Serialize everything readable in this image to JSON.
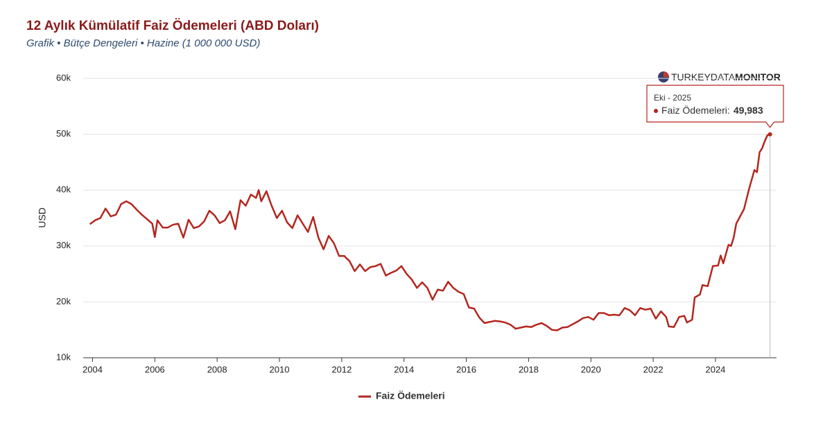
{
  "chart_data": {
    "type": "line",
    "title": "12 Aylık Kümülatif Faiz Ödemeleri (ABD Doları)",
    "subtitle": "Grafik • Bütçe Dengeleri • Hazine (1 000 000 USD)",
    "logo": {
      "light": "TURKEYDATA",
      "bold": "MONITOR"
    },
    "y_label": "USD",
    "xlim": [
      2003.7,
      2025.96
    ],
    "xticks": [
      2004,
      2006,
      2008,
      2010,
      2012,
      2014,
      2016,
      2018,
      2020,
      2022,
      2024
    ],
    "ylim": [
      10000,
      60000
    ],
    "yticks": [
      {
        "value": 10000,
        "label": "10k"
      },
      {
        "value": 20000,
        "label": "20k"
      },
      {
        "value": 30000,
        "label": "30k"
      },
      {
        "value": 40000,
        "label": "40k"
      },
      {
        "value": 50000,
        "label": "50k"
      },
      {
        "value": 60000,
        "label": "60k"
      }
    ],
    "grid": true,
    "legend": "bottom",
    "tooltip": {
      "x_label": "Eki - 2025",
      "label": "Faiz Ödemeleri:",
      "value_label": "49,983"
    },
    "x": [
      "2003-12",
      "2004-02",
      "2004-04",
      "2004-06",
      "2004-08",
      "2004-10",
      "2004-12",
      "2005-02",
      "2005-04",
      "2005-06",
      "2005-08",
      "2005-10",
      "2005-12",
      "2006-01",
      "2006-02",
      "2006-04",
      "2006-06",
      "2006-08",
      "2006-10",
      "2006-12",
      "2007-02",
      "2007-04",
      "2007-06",
      "2007-08",
      "2007-10",
      "2007-12",
      "2008-02",
      "2008-04",
      "2008-06",
      "2008-08",
      "2008-10",
      "2008-12",
      "2009-02",
      "2009-04",
      "2009-05",
      "2009-06",
      "2009-08",
      "2009-10",
      "2009-12",
      "2010-02",
      "2010-04",
      "2010-06",
      "2010-08",
      "2010-10",
      "2010-12",
      "2011-02",
      "2011-04",
      "2011-06",
      "2011-08",
      "2011-10",
      "2011-12",
      "2012-02",
      "2012-04",
      "2012-06",
      "2012-08",
      "2012-10",
      "2012-12",
      "2013-02",
      "2013-04",
      "2013-06",
      "2013-08",
      "2013-10",
      "2013-12",
      "2014-02",
      "2014-04",
      "2014-06",
      "2014-08",
      "2014-10",
      "2014-12",
      "2015-02",
      "2015-04",
      "2015-06",
      "2015-08",
      "2015-10",
      "2015-12",
      "2016-02",
      "2016-04",
      "2016-06",
      "2016-08",
      "2016-10",
      "2016-12",
      "2017-02",
      "2017-04",
      "2017-06",
      "2017-08",
      "2017-10",
      "2017-12",
      "2018-02",
      "2018-04",
      "2018-06",
      "2018-08",
      "2018-10",
      "2018-12",
      "2019-02",
      "2019-04",
      "2019-06",
      "2019-08",
      "2019-10",
      "2019-12",
      "2020-02",
      "2020-04",
      "2020-06",
      "2020-08",
      "2020-10",
      "2020-12",
      "2021-02",
      "2021-04",
      "2021-06",
      "2021-08",
      "2021-10",
      "2021-12",
      "2022-02",
      "2022-04",
      "2022-06",
      "2022-07",
      "2022-09",
      "2022-11",
      "2023-01",
      "2023-02",
      "2023-04",
      "2023-05",
      "2023-07",
      "2023-08",
      "2023-10",
      "2023-12",
      "2024-02",
      "2024-03",
      "2024-04",
      "2024-06",
      "2024-07",
      "2024-08",
      "2024-09",
      "2024-12",
      "2025-02",
      "2025-04",
      "2025-05",
      "2025-06",
      "2025-07",
      "2025-08",
      "2025-09",
      "2025-10"
    ],
    "series": [
      {
        "name": "Faiz Ödemeleri",
        "color": "#b3261e",
        "values": [
          33900,
          34600,
          35000,
          36700,
          35300,
          35600,
          37500,
          38000,
          37500,
          36500,
          35600,
          34800,
          34000,
          31600,
          34600,
          33300,
          33300,
          33800,
          34000,
          31500,
          34700,
          33200,
          33500,
          34400,
          36300,
          35500,
          34100,
          34600,
          36200,
          33000,
          38200,
          37200,
          39200,
          38600,
          40000,
          38000,
          39800,
          37200,
          35000,
          36300,
          34200,
          33200,
          35500,
          34000,
          32500,
          35200,
          31500,
          29400,
          31800,
          30500,
          28200,
          28200,
          27300,
          25500,
          26700,
          25500,
          26200,
          26400,
          26800,
          24700,
          25200,
          25600,
          26400,
          25000,
          24000,
          22500,
          23500,
          22500,
          20400,
          22200,
          22000,
          23600,
          22500,
          21800,
          21400,
          19000,
          18800,
          17200,
          16200,
          16400,
          16600,
          16500,
          16300,
          15900,
          15200,
          15400,
          15600,
          15500,
          15900,
          16200,
          15700,
          15000,
          14900,
          15400,
          15500,
          16000,
          16500,
          17100,
          17300,
          16800,
          18000,
          18000,
          17600,
          17700,
          17600,
          18900,
          18500,
          17600,
          18900,
          18600,
          18800,
          17000,
          18300,
          17300,
          15600,
          15500,
          17300,
          17500,
          16300,
          16800,
          20800,
          21300,
          23000,
          22800,
          26400,
          26500,
          28300,
          26900,
          30200,
          30000,
          31500,
          34000,
          36600,
          40300,
          43600,
          43200,
          46800,
          47500,
          48800,
          49800,
          49983
        ]
      }
    ]
  }
}
